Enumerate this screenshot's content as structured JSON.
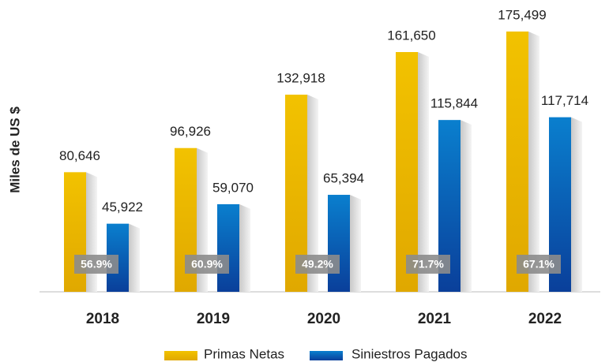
{
  "chart_data": {
    "type": "bar",
    "y_label": "Miles de US $",
    "categories": [
      "2018",
      "2019",
      "2020",
      "2021",
      "2022"
    ],
    "series": [
      {
        "name": "Primas Netas",
        "color": "#e8b800",
        "values": [
          80646,
          96926,
          132918,
          161650,
          175499
        ],
        "value_labels": [
          "80,646",
          "96,926",
          "132,918",
          "161,650",
          "175,499"
        ]
      },
      {
        "name": "Siniestros Pagados",
        "color": "#0a6ab8",
        "values": [
          45922,
          59070,
          65394,
          115844,
          117714
        ],
        "value_labels": [
          "45,922",
          "59,070",
          "65,394",
          "115,844",
          "117,714"
        ]
      }
    ],
    "annotations": [
      "56.9%",
      "60.9%",
      "49.2%",
      "71.7%",
      "67.1%"
    ],
    "ylim": [
      0,
      180000
    ]
  }
}
